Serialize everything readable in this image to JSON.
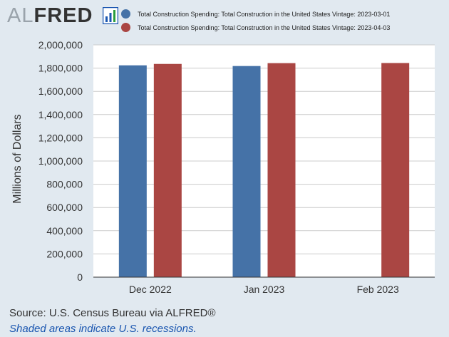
{
  "logo": {
    "prefix": "AL",
    "suffix": "FRED"
  },
  "colors": {
    "series1": "#4572a7",
    "series2": "#aa4643",
    "background": "#e1e9f0",
    "plot": "#ffffff",
    "grid": "#cccccc"
  },
  "chart_data": {
    "type": "bar",
    "categories": [
      "Dec 2022",
      "Jan 2023",
      "Feb 2023"
    ],
    "series": [
      {
        "name": "Total Construction Spending: Total Construction in the United States Vintage: 2023-03-01",
        "values": [
          1824000,
          1818000,
          null
        ]
      },
      {
        "name": "Total Construction Spending: Total Construction in the United States Vintage: 2023-04-03",
        "values": [
          1836000,
          1843000,
          1844000
        ]
      }
    ],
    "ylabel": "Millions of Dollars",
    "ylim": [
      0,
      2000000
    ],
    "yticks": [
      0,
      200000,
      400000,
      600000,
      800000,
      1000000,
      1200000,
      1400000,
      1600000,
      1800000,
      2000000
    ],
    "ytick_labels": [
      "0",
      "200,000",
      "400,000",
      "600,000",
      "800,000",
      "1,000,000",
      "1,200,000",
      "1,400,000",
      "1,600,000",
      "1,800,000",
      "2,000,000"
    ],
    "grid": true,
    "legend_position": "top"
  },
  "footer": {
    "source": "Source: U.S. Census Bureau via ALFRED®",
    "note": "Shaded areas indicate U.S. recessions."
  }
}
